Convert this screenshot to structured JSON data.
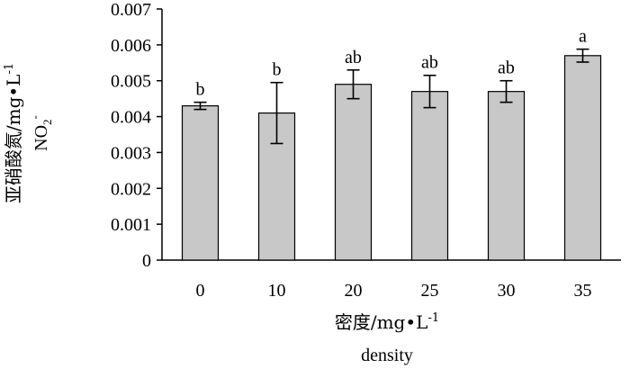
{
  "chart_data": {
    "type": "bar",
    "categories": [
      "0",
      "10",
      "20",
      "25",
      "30",
      "35"
    ],
    "values": [
      0.0043,
      0.0041,
      0.0049,
      0.0047,
      0.0047,
      0.0057
    ],
    "errors": [
      0.0001,
      0.00085,
      0.0004,
      0.00045,
      0.0003,
      0.00018
    ],
    "significance": [
      "b",
      "b",
      "ab",
      "ab",
      "ab",
      "a"
    ],
    "ylim": [
      0,
      0.007
    ],
    "yticks": [
      "0",
      "0.001",
      "0.002",
      "0.003",
      "0.004",
      "0.005",
      "0.006",
      "0.007"
    ],
    "ylabel_cn": "亚硝酸氮/mg•L",
    "ylabel_cn_sup": "-1",
    "ylabel_formula": "NO",
    "ylabel_formula_sub": "2",
    "ylabel_formula_sup": "-",
    "xlabel_cn": "密度/mg•L",
    "xlabel_cn_sup": "-1",
    "xlabel_en": "density",
    "grid": false,
    "legend": "none",
    "bar_color": "#c8c8c8"
  }
}
